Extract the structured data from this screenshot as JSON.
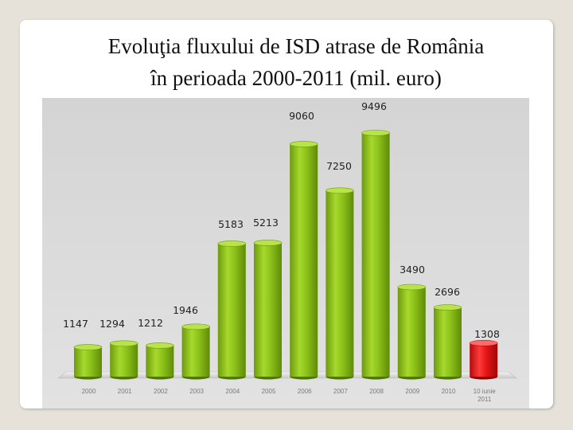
{
  "title_line1": "Evoluţia fluxului de ISD atrase de România",
  "title_line2": "în perioada 2000-2011 (mil. euro)",
  "colors": {
    "bar_green": "#8cc21a",
    "bar_highlight": "#e41414",
    "chart_background": "#d9d9d9"
  },
  "chart_data": {
    "type": "bar",
    "title": "Evoluţia fluxului de ISD atrase de România în perioada 2000-2011 (mil. euro)",
    "xlabel": "",
    "ylabel": "",
    "ylim": [
      0,
      10000
    ],
    "grid": false,
    "legend": "none",
    "categories": [
      "2000",
      "2001",
      "2002",
      "2003",
      "2004",
      "2005",
      "2006",
      "2007",
      "2008",
      "2009",
      "2010",
      "10 iunie 2011"
    ],
    "values": [
      1147,
      1294,
      1212,
      1946,
      5183,
      5213,
      9060,
      7250,
      9496,
      3490,
      2696,
      1308
    ],
    "value_labels": [
      "1147",
      "1294",
      "1212",
      "1946",
      "5183",
      "5213",
      "9060",
      "7250",
      "9496",
      "3490",
      "2696",
      "1308"
    ],
    "highlight_index": 11
  }
}
